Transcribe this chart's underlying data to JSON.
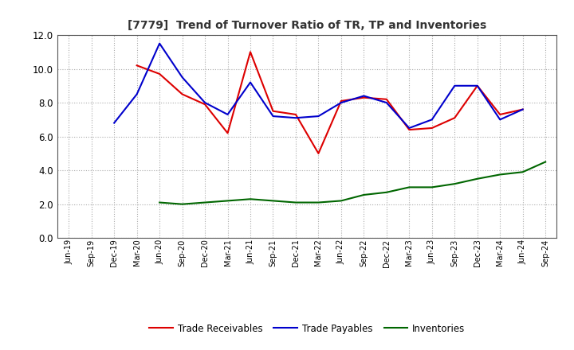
{
  "title": "[7779]  Trend of Turnover Ratio of TR, TP and Inventories",
  "x_labels": [
    "Jun-19",
    "Sep-19",
    "Dec-19",
    "Mar-20",
    "Jun-20",
    "Sep-20",
    "Dec-20",
    "Mar-21",
    "Jun-21",
    "Sep-21",
    "Dec-21",
    "Mar-22",
    "Jun-22",
    "Sep-22",
    "Dec-22",
    "Mar-23",
    "Jun-23",
    "Sep-23",
    "Dec-23",
    "Mar-24",
    "Jun-24",
    "Sep-24"
  ],
  "trade_receivables": [
    null,
    null,
    null,
    10.2,
    9.7,
    8.5,
    7.9,
    6.2,
    11.0,
    7.5,
    7.3,
    5.0,
    8.1,
    8.3,
    8.2,
    6.4,
    6.5,
    7.1,
    9.0,
    7.3,
    7.6,
    null
  ],
  "trade_payables": [
    null,
    null,
    6.8,
    8.5,
    11.5,
    9.5,
    8.0,
    7.3,
    9.2,
    7.2,
    7.1,
    7.2,
    8.0,
    8.4,
    8.0,
    6.5,
    7.0,
    9.0,
    9.0,
    7.0,
    7.6,
    null
  ],
  "inventories": [
    null,
    null,
    null,
    null,
    2.1,
    2.0,
    2.1,
    2.2,
    2.3,
    2.2,
    2.1,
    2.1,
    2.2,
    2.55,
    2.7,
    3.0,
    3.0,
    3.2,
    3.5,
    3.75,
    3.9,
    4.5
  ],
  "ylim": [
    0.0,
    12.0
  ],
  "yticks": [
    0.0,
    2.0,
    4.0,
    6.0,
    8.0,
    10.0,
    12.0
  ],
  "tr_color": "#dd0000",
  "tp_color": "#0000cc",
  "inv_color": "#006600",
  "tr_label": "Trade Receivables",
  "tp_label": "Trade Payables",
  "inv_label": "Inventories",
  "bg_color": "#ffffff",
  "grid_color": "#aaaaaa"
}
